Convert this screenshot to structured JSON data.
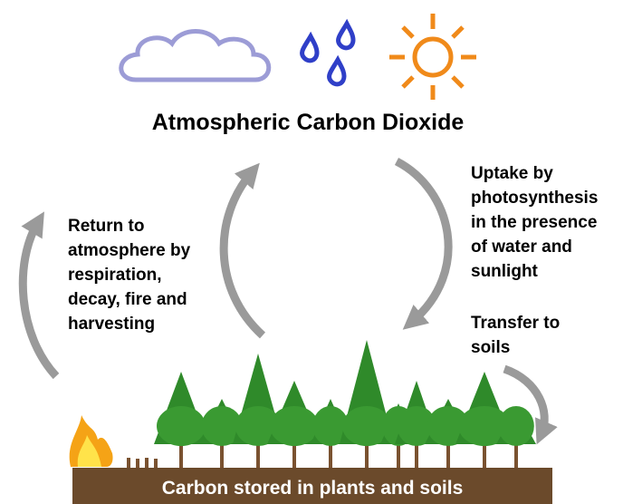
{
  "title": "Atmospheric Carbon Dioxide",
  "labels": {
    "return": [
      "Return to",
      "atmosphere by",
      "respiration,",
      "decay, fire and",
      "harvesting"
    ],
    "uptake": [
      "Uptake by",
      "photosynthesis",
      "in the presence",
      "of water and",
      "sunlight"
    ],
    "transfer": [
      "Transfer to",
      "soils"
    ]
  },
  "ground": "Carbon stored in plants and soils"
}
